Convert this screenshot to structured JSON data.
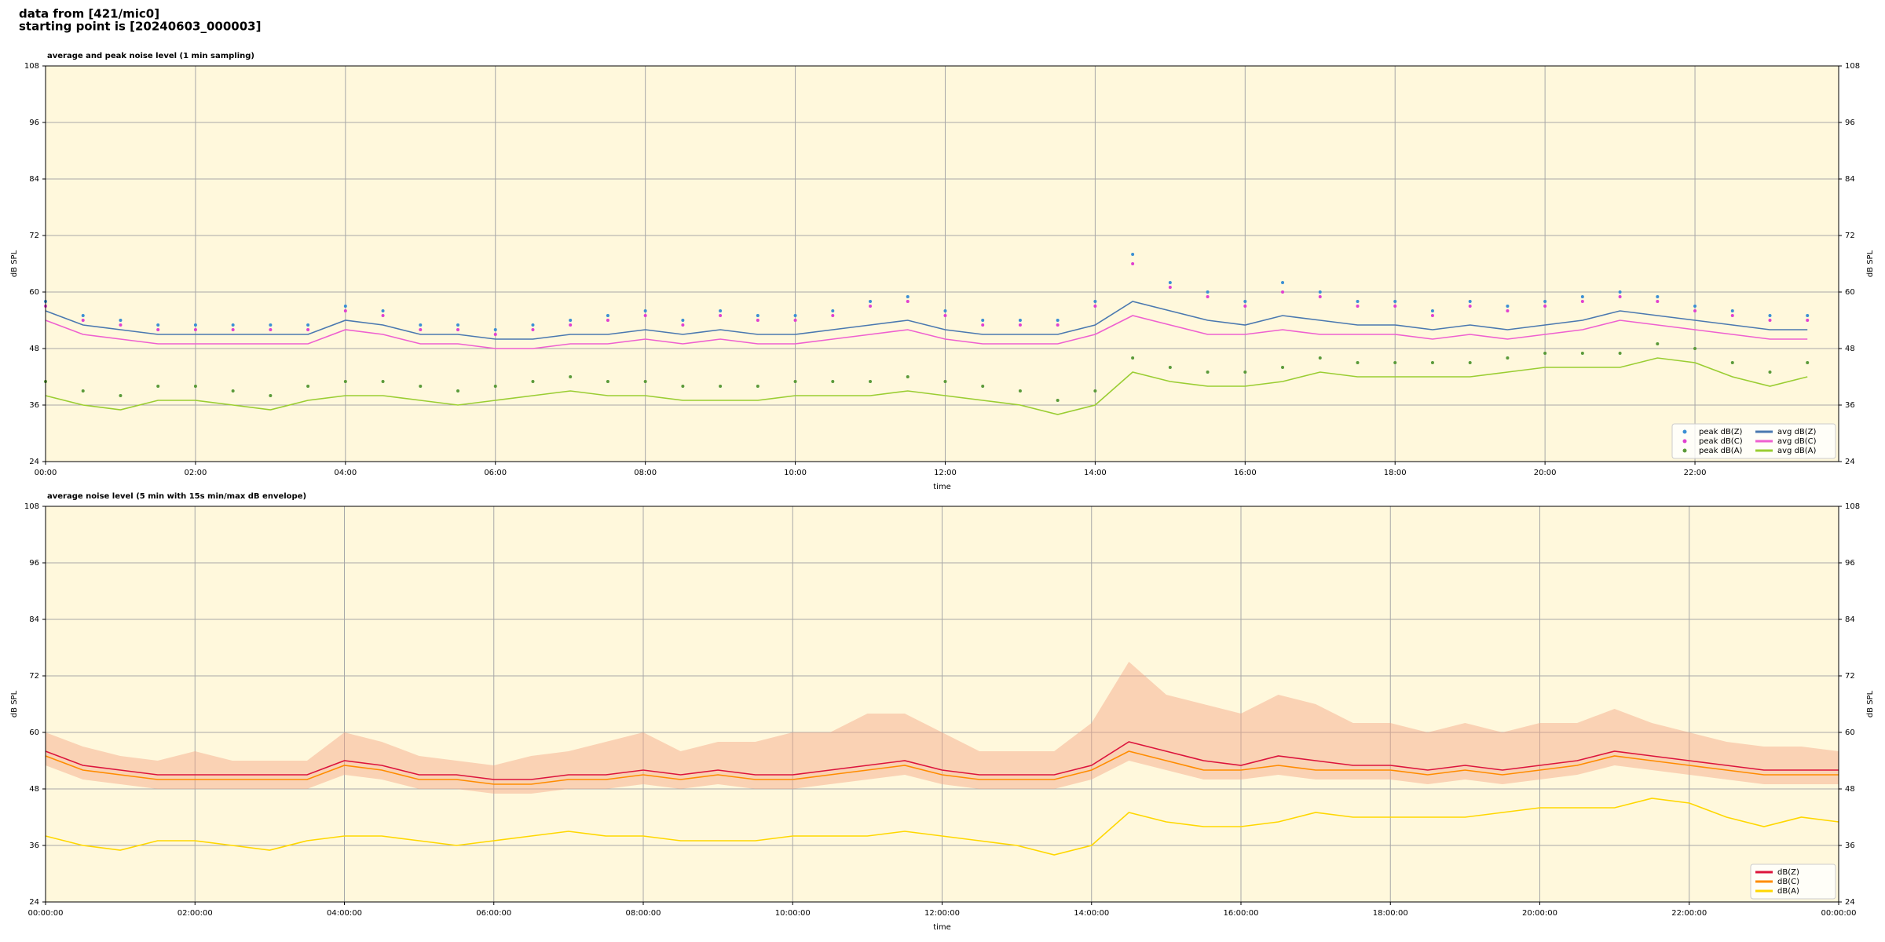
{
  "header": {
    "line1": "data from [421/mic0]",
    "line2": "starting point is [20240603_000003]"
  },
  "chart_data": [
    {
      "type": "line",
      "title": "average and peak noise level (1 min sampling)",
      "xlabel": "time",
      "ylabel": "dB SPL",
      "background": "#fff8dc",
      "grid": true,
      "legend": "lower right",
      "legend_columns": 2,
      "xlim": [
        0,
        1435
      ],
      "ylim": [
        24,
        108
      ],
      "yticks": [
        24,
        36,
        48,
        60,
        72,
        84,
        96,
        108
      ],
      "xticks": [
        {
          "value": 0,
          "label": "00:00"
        },
        {
          "value": 120,
          "label": "02:00"
        },
        {
          "value": 240,
          "label": "04:00"
        },
        {
          "value": 360,
          "label": "06:00"
        },
        {
          "value": 480,
          "label": "08:00"
        },
        {
          "value": 600,
          "label": "10:00"
        },
        {
          "value": 720,
          "label": "12:00"
        },
        {
          "value": 840,
          "label": "14:00"
        },
        {
          "value": 960,
          "label": "16:00"
        },
        {
          "value": 1080,
          "label": "18:00"
        },
        {
          "value": 1200,
          "label": "20:00"
        },
        {
          "value": 1320,
          "label": "22:00"
        }
      ],
      "x": [
        0,
        30,
        60,
        90,
        120,
        150,
        180,
        210,
        240,
        270,
        300,
        330,
        360,
        390,
        420,
        450,
        480,
        510,
        540,
        570,
        600,
        630,
        660,
        690,
        720,
        750,
        780,
        810,
        840,
        870,
        900,
        930,
        960,
        990,
        1020,
        1050,
        1080,
        1110,
        1140,
        1170,
        1200,
        1230,
        1260,
        1290,
        1320,
        1350,
        1380,
        1410
      ],
      "series": [
        {
          "name": "peak dB(Z)",
          "type": "scatter",
          "color": "#3b8fd4",
          "values": [
            58,
            55,
            54,
            53,
            53,
            53,
            53,
            53,
            57,
            56,
            53,
            53,
            52,
            53,
            54,
            55,
            56,
            54,
            56,
            55,
            55,
            56,
            58,
            59,
            56,
            54,
            54,
            54,
            58,
            68,
            62,
            60,
            58,
            62,
            60,
            58,
            58,
            56,
            58,
            57,
            58,
            59,
            60,
            59,
            57,
            56,
            55,
            55
          ]
        },
        {
          "name": "peak dB(C)",
          "type": "scatter",
          "color": "#e040d0",
          "values": [
            57,
            54,
            53,
            52,
            52,
            52,
            52,
            52,
            56,
            55,
            52,
            52,
            51,
            52,
            53,
            54,
            55,
            53,
            55,
            54,
            54,
            55,
            57,
            58,
            55,
            53,
            53,
            53,
            57,
            66,
            61,
            59,
            57,
            60,
            59,
            57,
            57,
            55,
            57,
            56,
            57,
            58,
            59,
            58,
            56,
            55,
            54,
            54
          ]
        },
        {
          "name": "peak dB(A)",
          "type": "scatter",
          "color": "#5a9a3a",
          "values": [
            41,
            39,
            38,
            40,
            40,
            39,
            38,
            40,
            41,
            41,
            40,
            39,
            40,
            41,
            42,
            41,
            41,
            40,
            40,
            40,
            41,
            41,
            41,
            42,
            41,
            40,
            39,
            37,
            39,
            46,
            44,
            43,
            43,
            44,
            46,
            45,
            45,
            45,
            45,
            46,
            47,
            47,
            47,
            49,
            48,
            45,
            43,
            45
          ]
        },
        {
          "name": "avg dB(Z)",
          "type": "line",
          "color": "#4a78b0",
          "values": [
            56,
            53,
            52,
            51,
            51,
            51,
            51,
            51,
            54,
            53,
            51,
            51,
            50,
            50,
            51,
            51,
            52,
            51,
            52,
            51,
            51,
            52,
            53,
            54,
            52,
            51,
            51,
            51,
            53,
            58,
            56,
            54,
            53,
            55,
            54,
            53,
            53,
            52,
            53,
            52,
            53,
            54,
            56,
            55,
            54,
            53,
            52,
            52
          ]
        },
        {
          "name": "avg dB(C)",
          "type": "line",
          "color": "#ee60d0",
          "values": [
            54,
            51,
            50,
            49,
            49,
            49,
            49,
            49,
            52,
            51,
            49,
            49,
            48,
            48,
            49,
            49,
            50,
            49,
            50,
            49,
            49,
            50,
            51,
            52,
            50,
            49,
            49,
            49,
            51,
            55,
            53,
            51,
            51,
            52,
            51,
            51,
            51,
            50,
            51,
            50,
            51,
            52,
            54,
            53,
            52,
            51,
            50,
            50
          ]
        },
        {
          "name": "avg dB(A)",
          "type": "line",
          "color": "#9acd32",
          "values": [
            38,
            36,
            35,
            37,
            37,
            36,
            35,
            37,
            38,
            38,
            37,
            36,
            37,
            38,
            39,
            38,
            38,
            37,
            37,
            37,
            38,
            38,
            38,
            39,
            38,
            37,
            36,
            34,
            36,
            43,
            41,
            40,
            40,
            41,
            43,
            42,
            42,
            42,
            42,
            43,
            44,
            44,
            44,
            46,
            45,
            42,
            40,
            42
          ]
        }
      ]
    },
    {
      "type": "line",
      "title": "average noise level (5 min with 15s min/max dB envelope)",
      "xlabel": "time",
      "ylabel": "dB SPL",
      "background": "#fff8dc",
      "grid": true,
      "legend": "lower right",
      "legend_columns": 1,
      "xlim": [
        0,
        1440
      ],
      "ylim": [
        24,
        108
      ],
      "yticks": [
        24,
        36,
        48,
        60,
        72,
        84,
        96,
        108
      ],
      "xticks": [
        {
          "value": 0,
          "label": "00:00:00"
        },
        {
          "value": 120,
          "label": "02:00:00"
        },
        {
          "value": 240,
          "label": "04:00:00"
        },
        {
          "value": 360,
          "label": "06:00:00"
        },
        {
          "value": 480,
          "label": "08:00:00"
        },
        {
          "value": 600,
          "label": "10:00:00"
        },
        {
          "value": 720,
          "label": "12:00:00"
        },
        {
          "value": 840,
          "label": "14:00:00"
        },
        {
          "value": 960,
          "label": "16:00:00"
        },
        {
          "value": 1080,
          "label": "18:00:00"
        },
        {
          "value": 1200,
          "label": "20:00:00"
        },
        {
          "value": 1320,
          "label": "22:00:00"
        },
        {
          "value": 1440,
          "label": "00:00:00"
        }
      ],
      "x": [
        0,
        30,
        60,
        90,
        120,
        150,
        180,
        210,
        240,
        270,
        300,
        330,
        360,
        390,
        420,
        450,
        480,
        510,
        540,
        570,
        600,
        630,
        660,
        690,
        720,
        750,
        780,
        810,
        840,
        870,
        900,
        930,
        960,
        990,
        1020,
        1050,
        1080,
        1110,
        1140,
        1170,
        1200,
        1230,
        1260,
        1290,
        1320,
        1350,
        1380,
        1410,
        1440
      ],
      "envelope": {
        "color": "#f4a582",
        "opacity": 0.45,
        "max": [
          60,
          57,
          55,
          54,
          56,
          54,
          54,
          54,
          60,
          58,
          55,
          54,
          53,
          55,
          56,
          58,
          60,
          56,
          58,
          58,
          60,
          60,
          64,
          64,
          60,
          56,
          56,
          56,
          62,
          75,
          68,
          66,
          64,
          68,
          66,
          62,
          62,
          60,
          62,
          60,
          62,
          62,
          65,
          62,
          60,
          58,
          57,
          57,
          56
        ],
        "min": [
          53,
          50,
          49,
          48,
          48,
          48,
          48,
          48,
          51,
          50,
          48,
          48,
          47,
          47,
          48,
          48,
          49,
          48,
          49,
          48,
          48,
          49,
          50,
          51,
          49,
          48,
          48,
          48,
          50,
          54,
          52,
          50,
          50,
          51,
          50,
          50,
          50,
          49,
          50,
          49,
          50,
          51,
          53,
          52,
          51,
          50,
          49,
          49,
          49
        ]
      },
      "series": [
        {
          "name": "dB(Z)",
          "type": "line",
          "color": "#dc143c",
          "values": [
            56,
            53,
            52,
            51,
            51,
            51,
            51,
            51,
            54,
            53,
            51,
            51,
            50,
            50,
            51,
            51,
            52,
            51,
            52,
            51,
            51,
            52,
            53,
            54,
            52,
            51,
            51,
            51,
            53,
            58,
            56,
            54,
            53,
            55,
            54,
            53,
            53,
            52,
            53,
            52,
            53,
            54,
            56,
            55,
            54,
            53,
            52,
            52,
            52
          ]
        },
        {
          "name": "dB(C)",
          "type": "line",
          "color": "#ff8c00",
          "values": [
            55,
            52,
            51,
            50,
            50,
            50,
            50,
            50,
            53,
            52,
            50,
            50,
            49,
            49,
            50,
            50,
            51,
            50,
            51,
            50,
            50,
            51,
            52,
            53,
            51,
            50,
            50,
            50,
            52,
            56,
            54,
            52,
            52,
            53,
            52,
            52,
            52,
            51,
            52,
            51,
            52,
            53,
            55,
            54,
            53,
            52,
            51,
            51,
            51
          ]
        },
        {
          "name": "dB(A)",
          "type": "line",
          "color": "#ffd700",
          "values": [
            38,
            36,
            35,
            37,
            37,
            36,
            35,
            37,
            38,
            38,
            37,
            36,
            37,
            38,
            39,
            38,
            38,
            37,
            37,
            37,
            38,
            38,
            38,
            39,
            38,
            37,
            36,
            34,
            36,
            43,
            41,
            40,
            40,
            41,
            43,
            42,
            42,
            42,
            42,
            43,
            44,
            44,
            44,
            46,
            45,
            42,
            40,
            42,
            41
          ]
        }
      ]
    }
  ]
}
